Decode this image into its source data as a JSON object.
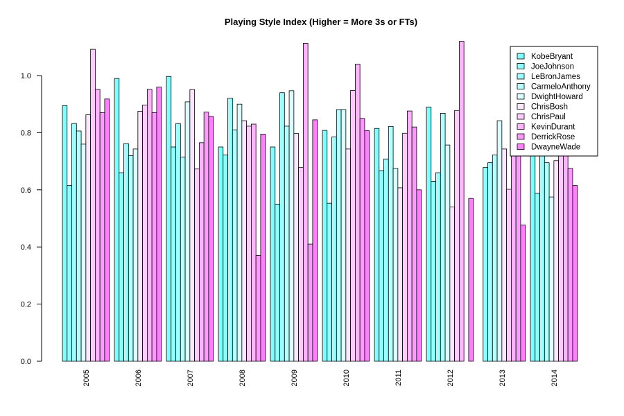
{
  "chart_data": {
    "type": "bar",
    "title": "Playing Style Index (Higher = More 3s or FTs)",
    "xlabel": "",
    "ylabel": "",
    "ylim": [
      0,
      1.13
    ],
    "yticks": [
      0.0,
      0.2,
      0.4,
      0.6,
      0.8,
      1.0
    ],
    "ytick_labels": [
      "0.0",
      "0.2",
      "0.4",
      "0.6",
      "0.8",
      "1.0"
    ],
    "categories": [
      "2005",
      "2006",
      "2007",
      "2008",
      "2009",
      "2010",
      "2011",
      "2012",
      "2013",
      "2014"
    ],
    "legend_position": "top-right",
    "series": [
      {
        "name": "KobeBryant",
        "color": "#80FFFF",
        "values": [
          0.895,
          0.99,
          0.997,
          0.75,
          0.75,
          0.808,
          0.815,
          0.89,
          0.0,
          0.83
        ]
      },
      {
        "name": "JoeJohnson",
        "color": "#8DFFFF",
        "values": [
          0.615,
          0.66,
          0.75,
          0.722,
          0.55,
          0.553,
          0.667,
          0.63,
          0.678,
          0.588
        ]
      },
      {
        "name": "LeBronJames",
        "color": "#9BFFFF",
        "values": [
          0.832,
          0.762,
          0.832,
          0.921,
          0.94,
          0.785,
          0.708,
          0.66,
          0.695,
          0.75
        ]
      },
      {
        "name": "CarmeloAnthony",
        "color": "#B4FFFF",
        "values": [
          0.806,
          0.72,
          0.715,
          0.81,
          0.823,
          0.881,
          0.822,
          0.868,
          0.722,
          0.695
        ]
      },
      {
        "name": "DwightHoward",
        "color": "#DBFFFF",
        "values": [
          0.76,
          0.743,
          0.908,
          0.9,
          0.947,
          0.881,
          0.675,
          0.757,
          0.842,
          0.575
        ]
      },
      {
        "name": "ChrisBosh",
        "color": "#FFE6FF",
        "values": [
          0.863,
          0.875,
          0.951,
          0.842,
          0.797,
          0.743,
          0.607,
          0.54,
          0.743,
          0.702
        ]
      },
      {
        "name": "ChrisPaul",
        "color": "#FFCCFF",
        "values": [
          1.092,
          0.897,
          0.673,
          0.823,
          0.678,
          0.948,
          0.798,
          0.878,
          0.602,
          0.76
        ]
      },
      {
        "name": "KevinDurant",
        "color": "#FFB3FF",
        "values": [
          0.952,
          0.952,
          0.765,
          0.83,
          1.113,
          1.04,
          0.876,
          1.12,
          0.8,
          0.78
        ]
      },
      {
        "name": "DerrickRose",
        "color": "#FF99FF",
        "values": [
          0.87,
          0.87,
          0.872,
          0.37,
          0.41,
          0.85,
          0.82,
          0.0,
          0.758,
          0.675
        ]
      },
      {
        "name": "DwayneWade",
        "color": "#FF80FF",
        "values": [
          0.918,
          0.96,
          0.857,
          0.795,
          0.845,
          0.807,
          0.6,
          0.57,
          0.477,
          0.615
        ]
      }
    ]
  }
}
